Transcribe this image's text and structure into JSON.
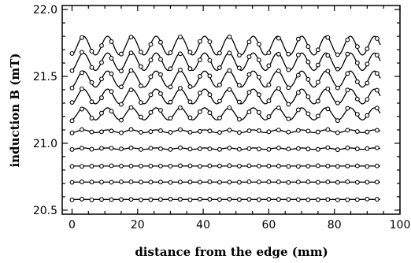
{
  "chart_data": {
    "type": "scatter",
    "title": "",
    "xlabel": "distance from the edge (mm)",
    "ylabel": "induction B (mT)",
    "xlim": [
      -3,
      100
    ],
    "ylim": [
      20.47,
      22.03
    ],
    "x_ticks": [
      0,
      20,
      40,
      60,
      80,
      100
    ],
    "x_tick_labels": [
      "0",
      "20",
      "40",
      "60",
      "80",
      "100"
    ],
    "y_ticks": [
      20.5,
      21.0,
      21.5,
      22.0
    ],
    "y_tick_labels": [
      "20.5",
      "21.0",
      "21.5",
      "22.0"
    ],
    "y_minor_step": 0.1,
    "x_minor_step": 5,
    "grid": false,
    "legend": "none",
    "point_x": [
      0,
      3,
      6,
      9,
      12,
      15,
      18,
      21,
      24,
      27,
      30,
      33,
      36,
      39,
      42,
      45,
      48,
      51,
      54,
      57,
      60,
      63,
      66,
      69,
      72,
      75,
      78,
      81,
      84,
      87,
      90,
      93
    ],
    "fit_x_range": [
      0,
      94
    ],
    "oscillation_period_mm": 7.4,
    "series": [
      {
        "baseline": 20.58,
        "amplitude": 0.0
      },
      {
        "baseline": 20.71,
        "amplitude": 0.0
      },
      {
        "baseline": 20.83,
        "amplitude": 0.0
      },
      {
        "baseline": 20.96,
        "amplitude": 0.005
      },
      {
        "baseline": 21.09,
        "amplitude": 0.01
      },
      {
        "baseline": 21.22,
        "amplitude": 0.045
      },
      {
        "baseline": 21.35,
        "amplitude": 0.055
      },
      {
        "baseline": 21.48,
        "amplitude": 0.06
      },
      {
        "baseline": 21.61,
        "amplitude": 0.065
      },
      {
        "baseline": 21.73,
        "amplitude": 0.07
      }
    ]
  }
}
